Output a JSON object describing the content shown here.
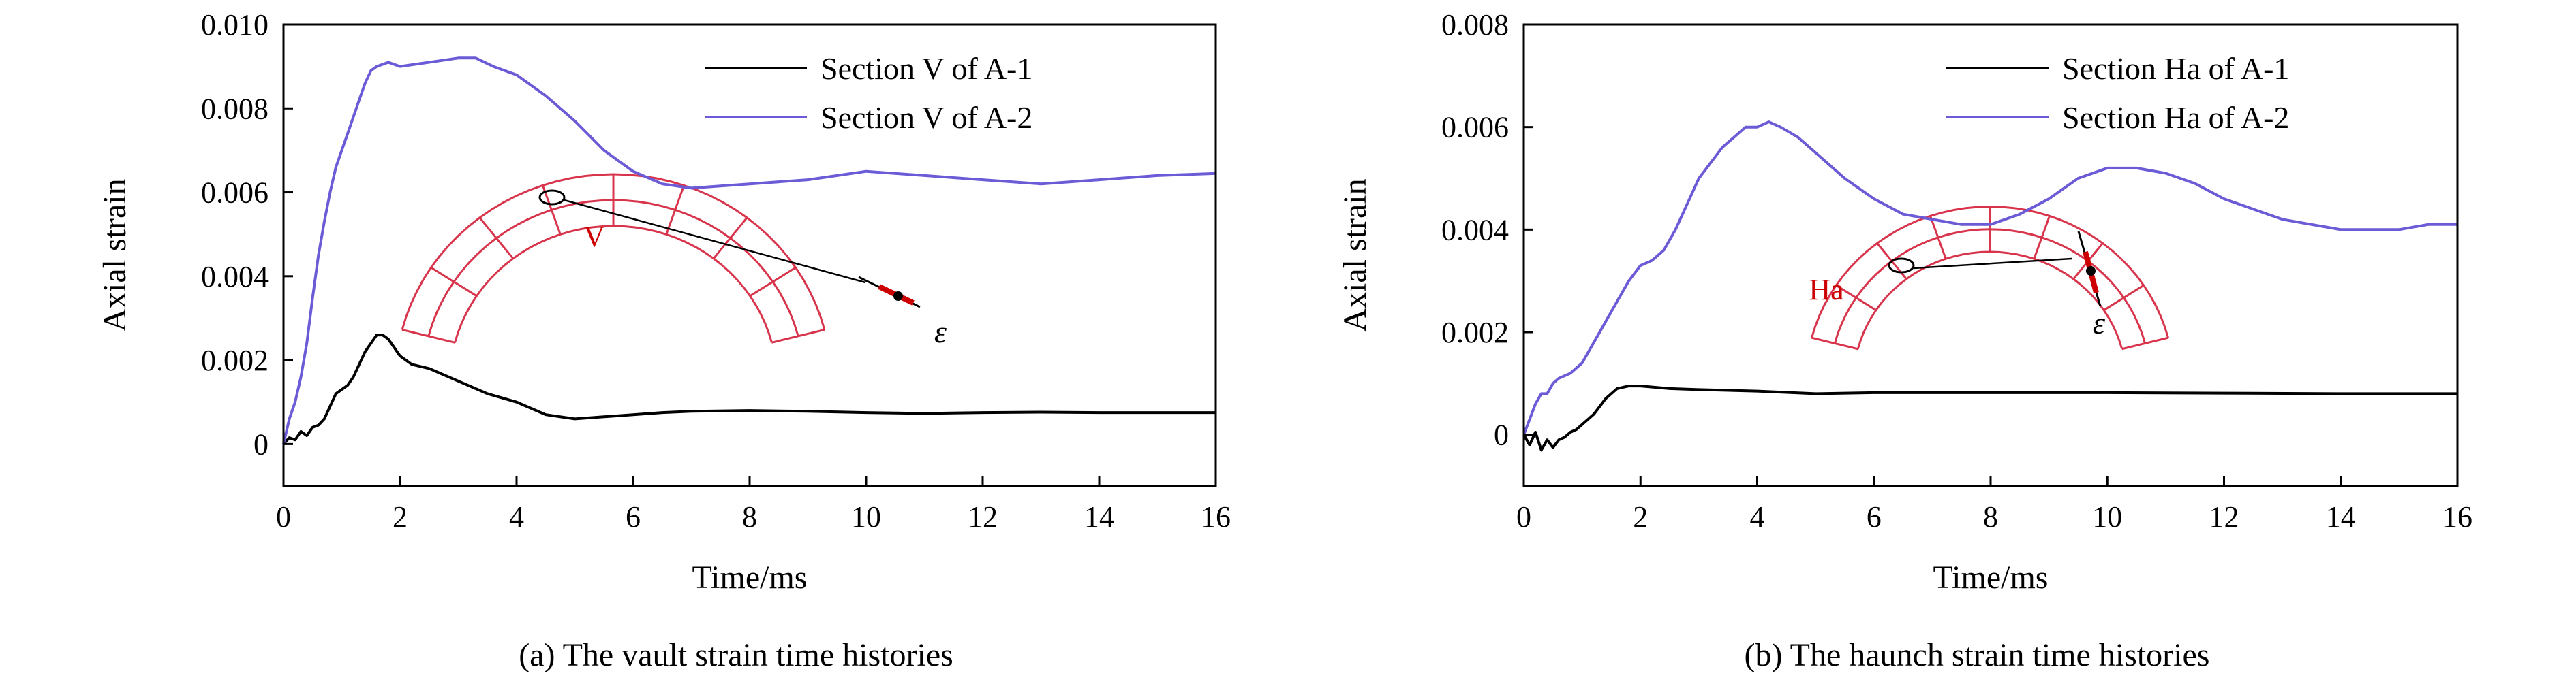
{
  "colors": {
    "series_a1": "#000000",
    "series_a2": "#6b5bd6",
    "mesh": "#d8344c",
    "marker": "#cc0000",
    "axis": "#000000"
  },
  "chart_data": [
    {
      "type": "line",
      "caption": "(a) The vault strain time histories",
      "xlabel": "Time/ms",
      "ylabel": "Axial strain",
      "xlim": [
        0,
        16
      ],
      "ylim": [
        -0.001,
        0.01
      ],
      "x_ticks": [
        0,
        2,
        4,
        6,
        8,
        10,
        12,
        14,
        16
      ],
      "x_tick_labels": [
        "0",
        "2",
        "4",
        "6",
        "8",
        "10",
        "12",
        "14",
        "16"
      ],
      "y_ticks": [
        0,
        0.002,
        0.004,
        0.006,
        0.008,
        0.01
      ],
      "y_tick_labels": [
        "0",
        "0.002",
        "0.004",
        "0.006",
        "0.008",
        "0.010"
      ],
      "legend_position": "top-right",
      "inset": {
        "section_label": "V",
        "strain_symbol": "ε"
      },
      "series": [
        {
          "name": "Section V of A-1",
          "color": "#000000",
          "x": [
            0,
            0.1,
            0.2,
            0.3,
            0.4,
            0.5,
            0.6,
            0.7,
            0.8,
            0.9,
            1.0,
            1.1,
            1.2,
            1.3,
            1.4,
            1.5,
            1.6,
            1.7,
            1.8,
            1.9,
            2.0,
            2.2,
            2.5,
            3.0,
            3.5,
            4.0,
            4.5,
            5.0,
            5.5,
            6.0,
            6.5,
            7.0,
            8.0,
            9.0,
            10.0,
            11.0,
            12.0,
            13.0,
            14.0,
            15.0,
            16.0
          ],
          "y": [
            0,
            0.00015,
            0.0001,
            0.0003,
            0.0002,
            0.0004,
            0.00045,
            0.0006,
            0.0009,
            0.0012,
            0.0013,
            0.0014,
            0.0016,
            0.0019,
            0.0022,
            0.0024,
            0.0026,
            0.0026,
            0.0025,
            0.0023,
            0.0021,
            0.0019,
            0.0018,
            0.0015,
            0.0012,
            0.001,
            0.0007,
            0.0006,
            0.00065,
            0.0007,
            0.00075,
            0.00078,
            0.0008,
            0.00078,
            0.00075,
            0.00073,
            0.00075,
            0.00076,
            0.00075,
            0.00075,
            0.00075
          ]
        },
        {
          "name": "Section V of A-2",
          "color": "#6b5bd6",
          "x": [
            0,
            0.1,
            0.2,
            0.3,
            0.4,
            0.5,
            0.6,
            0.7,
            0.8,
            0.9,
            1.0,
            1.1,
            1.2,
            1.3,
            1.4,
            1.5,
            1.6,
            1.8,
            2.0,
            2.5,
            3.0,
            3.3,
            3.6,
            4.0,
            4.5,
            5.0,
            5.5,
            6.0,
            6.5,
            7.0,
            7.5,
            8.0,
            9.0,
            10.0,
            11.0,
            12.0,
            13.0,
            14.0,
            15.0,
            16.0
          ],
          "y": [
            0,
            0.0006,
            0.001,
            0.0016,
            0.0024,
            0.0035,
            0.0045,
            0.0053,
            0.006,
            0.0066,
            0.007,
            0.0074,
            0.0078,
            0.0082,
            0.0086,
            0.0089,
            0.009,
            0.0091,
            0.009,
            0.0091,
            0.0092,
            0.0092,
            0.009,
            0.0088,
            0.0083,
            0.0077,
            0.007,
            0.0065,
            0.0062,
            0.0061,
            0.00615,
            0.0062,
            0.0063,
            0.0065,
            0.0064,
            0.0063,
            0.0062,
            0.0063,
            0.0064,
            0.00645
          ]
        }
      ]
    },
    {
      "type": "line",
      "caption": "(b) The haunch strain time histories",
      "xlabel": "Time/ms",
      "ylabel": "Axial strain",
      "xlim": [
        0,
        16
      ],
      "ylim": [
        -0.001,
        0.008
      ],
      "x_ticks": [
        0,
        2,
        4,
        6,
        8,
        10,
        12,
        14,
        16
      ],
      "x_tick_labels": [
        "0",
        "2",
        "4",
        "6",
        "8",
        "10",
        "12",
        "14",
        "16"
      ],
      "y_ticks": [
        0,
        0.002,
        0.004,
        0.006,
        0.008
      ],
      "y_tick_labels": [
        "0",
        "0.002",
        "0.004",
        "0.006",
        "0.008"
      ],
      "legend_position": "top-right",
      "inset": {
        "section_label": "Ha",
        "strain_symbol": "ε"
      },
      "series": [
        {
          "name": "Section Ha of A-1",
          "color": "#000000",
          "x": [
            0,
            0.1,
            0.2,
            0.3,
            0.4,
            0.5,
            0.6,
            0.7,
            0.8,
            0.9,
            1.0,
            1.2,
            1.4,
            1.6,
            1.8,
            2.0,
            2.5,
            3.0,
            4.0,
            5.0,
            6.0,
            8.0,
            10.0,
            12.0,
            14.0,
            16.0
          ],
          "y": [
            0,
            -0.0002,
            5e-05,
            -0.0003,
            -0.0001,
            -0.00025,
            -0.0001,
            -5e-05,
            5e-05,
            0.0001,
            0.0002,
            0.0004,
            0.0007,
            0.0009,
            0.00095,
            0.00095,
            0.0009,
            0.00088,
            0.00085,
            0.0008,
            0.00082,
            0.00082,
            0.00082,
            0.00081,
            0.0008,
            0.0008
          ]
        },
        {
          "name": "Section Ha of A-2",
          "color": "#6b5bd6",
          "x": [
            0,
            0.1,
            0.2,
            0.3,
            0.4,
            0.5,
            0.6,
            0.8,
            1.0,
            1.2,
            1.4,
            1.6,
            1.8,
            2.0,
            2.2,
            2.4,
            2.6,
            2.8,
            3.0,
            3.2,
            3.4,
            3.6,
            3.8,
            4.0,
            4.2,
            4.4,
            4.7,
            5.0,
            5.5,
            6.0,
            6.5,
            7.0,
            7.5,
            8.0,
            8.5,
            9.0,
            9.5,
            10.0,
            10.5,
            11.0,
            11.5,
            12.0,
            12.5,
            13.0,
            13.5,
            14.0,
            14.5,
            15.0,
            15.5,
            16.0
          ],
          "y": [
            0,
            0.0003,
            0.0006,
            0.0008,
            0.0008,
            0.001,
            0.0011,
            0.0012,
            0.0014,
            0.0018,
            0.0022,
            0.0026,
            0.003,
            0.0033,
            0.0034,
            0.0036,
            0.004,
            0.0045,
            0.005,
            0.0053,
            0.0056,
            0.0058,
            0.006,
            0.006,
            0.0061,
            0.006,
            0.0058,
            0.0055,
            0.005,
            0.0046,
            0.0043,
            0.0042,
            0.0041,
            0.0041,
            0.0043,
            0.0046,
            0.005,
            0.0052,
            0.0052,
            0.0051,
            0.0049,
            0.0046,
            0.0044,
            0.0042,
            0.0041,
            0.004,
            0.004,
            0.004,
            0.0041,
            0.0041
          ]
        }
      ]
    }
  ]
}
